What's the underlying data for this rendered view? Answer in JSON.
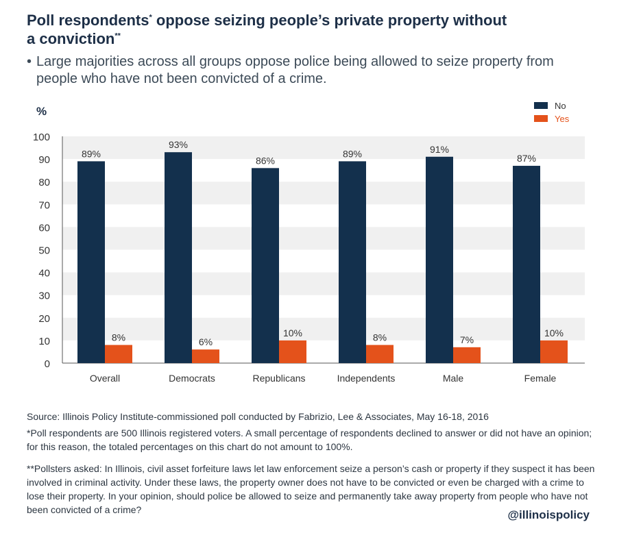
{
  "title": "Poll respondents* oppose seizing people’s private property without a conviction**",
  "title_parts": {
    "line1_main": "Poll respondents",
    "line1_mark": "*",
    "line1_rest": " oppose seizing people’s private property without",
    "line2_main": "a conviction",
    "line2_mark": "**"
  },
  "subtitle": "Large majorities across all groups oppose police being allowed to seize property from people who have not been convicted of a crime.",
  "bullet_glyph": "•",
  "notes": {
    "source": "Source: Illinois Policy Institute-commissioned poll conducted by Fabrizio, Lee & Associates, May 16-18, 2016",
    "footnote1": "*Poll respondents are 500 Illinois registered voters. A small percentage of respondents declined to answer or did not have an opinion; for this reason, the totaled percentages on this chart do not amount to 100%.",
    "footnote2": "**Pollsters asked: In Illinois, civil asset forfeiture laws let law enforcement seize a person’s cash or property if they suspect it has been involved in criminal activity. Under these laws, the property owner does not have to be convicted or even be charged with a crime to lose their property. In your opinion, should police be allowed to seize and permanently take away property from people who have not been convicted of a crime?"
  },
  "handle": "@illinoispolicy",
  "colors": {
    "no": "#13304d",
    "yes": "#e4521b",
    "band": "#f0f0f0",
    "axis": "#555555",
    "text": "#333333"
  },
  "chart_data": {
    "type": "bar",
    "ylabel": "%",
    "ylim": [
      0,
      100
    ],
    "yticks": [
      0,
      10,
      20,
      30,
      40,
      50,
      60,
      70,
      80,
      90,
      100
    ],
    "grid": "alternating horizontal bands",
    "legend_position": "top-right",
    "categories": [
      "Overall",
      "Democrats",
      "Republicans",
      "Independents",
      "Male",
      "Female"
    ],
    "series": [
      {
        "name": "No",
        "values": [
          89,
          93,
          86,
          89,
          91,
          87
        ],
        "labels": [
          "89%",
          "93%",
          "86%",
          "89%",
          "91%",
          "87%"
        ]
      },
      {
        "name": "Yes",
        "values": [
          8,
          6,
          10,
          8,
          7,
          10
        ],
        "labels": [
          "8%",
          "6%",
          "10%",
          "8%",
          "7%",
          "10%"
        ]
      }
    ]
  }
}
